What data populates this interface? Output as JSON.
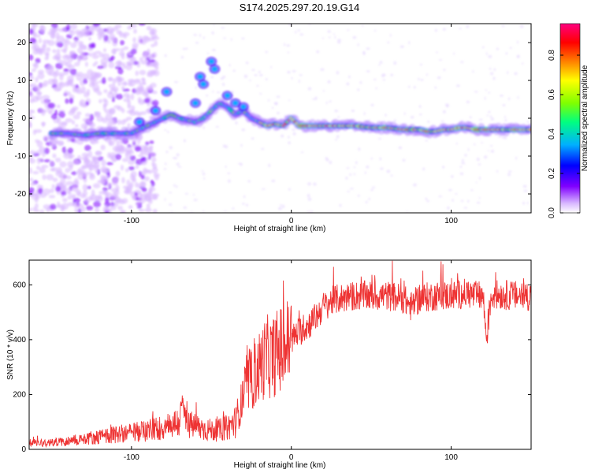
{
  "title": "S174.2025.297.20.19.G14",
  "chart_data": [
    {
      "type": "heatmap",
      "title": "S174.2025.297.20.19.G14",
      "xlabel": "Height of straight line (km)",
      "ylabel": "Frequency (Hz)",
      "xlim": [
        -164,
        150
      ],
      "ylim": [
        -25,
        25
      ],
      "x_ticks": [
        -100,
        0,
        100
      ],
      "y_ticks": [
        -20,
        -10,
        0,
        10,
        20
      ],
      "colorbar": {
        "label": "Normalized spectral amplitude",
        "range": [
          0,
          0.96
        ],
        "ticks": [
          0.0,
          0.2,
          0.4,
          0.6,
          0.8
        ],
        "colors": [
          "#ffffff",
          "#d8b8ff",
          "#8000ff",
          "#0000ff",
          "#00b0ff",
          "#00ff80",
          "#80ff00",
          "#ffff00",
          "#ff8000",
          "#ff0000",
          "#ff0080"
        ]
      },
      "ridge": {
        "x": [
          -150,
          -140,
          -130,
          -120,
          -110,
          -100,
          -90,
          -80,
          -75,
          -70,
          -60,
          -55,
          -50,
          -45,
          -40,
          -35,
          -30,
          -25,
          -20,
          -15,
          -10,
          -5,
          0,
          5,
          10,
          20,
          30,
          40,
          50,
          60,
          70,
          80,
          85,
          90,
          95,
          100,
          105,
          110,
          115,
          120,
          130,
          140,
          150
        ],
        "y": [
          -4,
          -4,
          -4.5,
          -4,
          -4,
          -4,
          -2,
          0,
          1,
          0,
          -1,
          0,
          2,
          4,
          3,
          1,
          2,
          0,
          -1,
          -2,
          -1.5,
          -2,
          0,
          -2,
          -2,
          -2,
          -2,
          -2,
          -2.5,
          -2.5,
          -3,
          -3,
          -3.5,
          -3.5,
          -3,
          -3,
          -2.5,
          -2.5,
          -3,
          -3,
          -3,
          -3,
          -3
        ]
      },
      "features": {
        "x": [
          -95,
          -85,
          -78,
          -60,
          -57,
          -55,
          -50,
          -48,
          -40,
          -35,
          -30
        ],
        "y": [
          -1,
          2,
          7,
          4,
          11,
          9,
          15,
          13,
          6,
          4,
          3
        ]
      }
    },
    {
      "type": "line",
      "xlabel": "Height of straight line (km)",
      "ylabel": "SNR (10 * v/v)",
      "xlim": [
        -164,
        150
      ],
      "ylim": [
        0,
        690
      ],
      "x_ticks": [
        -100,
        0,
        100
      ],
      "y_ticks": [
        0,
        200,
        400,
        600
      ],
      "color": "#ee3333",
      "series": [
        {
          "name": "SNR",
          "x": [
            -164,
            -150,
            -140,
            -135,
            -130,
            -120,
            -110,
            -100,
            -90,
            -80,
            -75,
            -70,
            -68,
            -65,
            -60,
            -55,
            -50,
            -45,
            -40,
            -35,
            -33,
            -30,
            -28,
            -25,
            -22,
            -20,
            -18,
            -15,
            -12,
            -10,
            -5,
            0,
            5,
            10,
            15,
            20,
            25,
            30,
            40,
            50,
            60,
            70,
            75,
            80,
            90,
            100,
            110,
            115,
            120,
            122,
            125,
            130,
            140,
            150
          ],
          "y": [
            25,
            25,
            30,
            35,
            40,
            45,
            55,
            60,
            70,
            80,
            90,
            100,
            160,
            90,
            85,
            75,
            70,
            70,
            80,
            100,
            130,
            200,
            230,
            250,
            280,
            300,
            320,
            340,
            330,
            350,
            370,
            400,
            430,
            450,
            480,
            520,
            540,
            550,
            560,
            560,
            560,
            550,
            520,
            550,
            560,
            560,
            570,
            560,
            560,
            400,
            560,
            565,
            560,
            560
          ]
        }
      ]
    }
  ]
}
